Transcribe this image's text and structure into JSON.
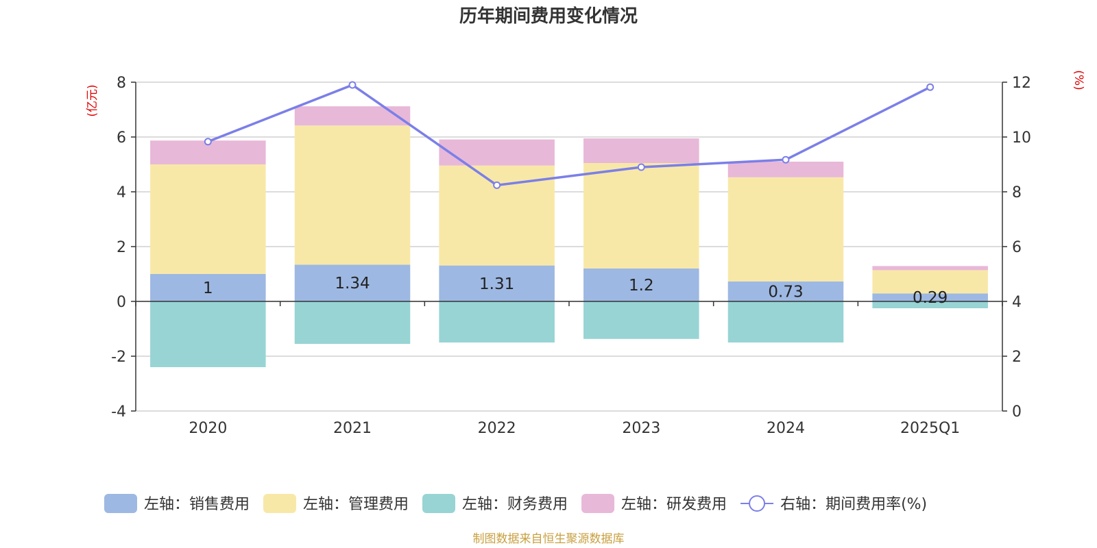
{
  "chart_data": {
    "type": "bar",
    "title": "历年期间费用变化情况",
    "categories": [
      "2020",
      "2021",
      "2022",
      "2023",
      "2024",
      "2025Q1"
    ],
    "left_axis": {
      "unit_label": "(亿元)",
      "ylim": [
        -4,
        8
      ],
      "ticks": [
        -4,
        -2,
        0,
        2,
        4,
        6,
        8
      ]
    },
    "right_axis": {
      "unit_label": "(%)",
      "ylim": [
        0,
        12
      ],
      "ticks": [
        0,
        2,
        4,
        6,
        8,
        10,
        12
      ]
    },
    "series": [
      {
        "name": "左轴：销售费用",
        "kind": "bar",
        "axis": "left",
        "color": "#9db8e2",
        "values": [
          1.0,
          1.34,
          1.31,
          1.2,
          0.73,
          0.29
        ],
        "labels": [
          "1",
          "1.34",
          "1.31",
          "1.2",
          "0.73",
          "0.29"
        ]
      },
      {
        "name": "左轴：管理费用",
        "kind": "bar",
        "axis": "left",
        "color": "#f8e8a8",
        "values": [
          4.0,
          5.08,
          3.65,
          3.85,
          3.8,
          0.85
        ]
      },
      {
        "name": "左轴：财务费用",
        "kind": "bar",
        "axis": "left",
        "color": "#98d4d4",
        "values": [
          -2.4,
          -1.55,
          -1.5,
          -1.37,
          -1.5,
          -0.25
        ]
      },
      {
        "name": "左轴：研发费用",
        "kind": "bar",
        "axis": "left",
        "color": "#e8b8d8",
        "values": [
          0.87,
          0.7,
          0.95,
          0.9,
          0.57,
          0.15
        ]
      },
      {
        "name": "右轴：期间费用率(%)",
        "kind": "line",
        "axis": "right",
        "color": "#7b7fe8",
        "values": [
          9.83,
          11.9,
          8.24,
          8.9,
          9.17,
          11.82
        ]
      }
    ]
  },
  "source_note": "制图数据来自恒生聚源数据库"
}
